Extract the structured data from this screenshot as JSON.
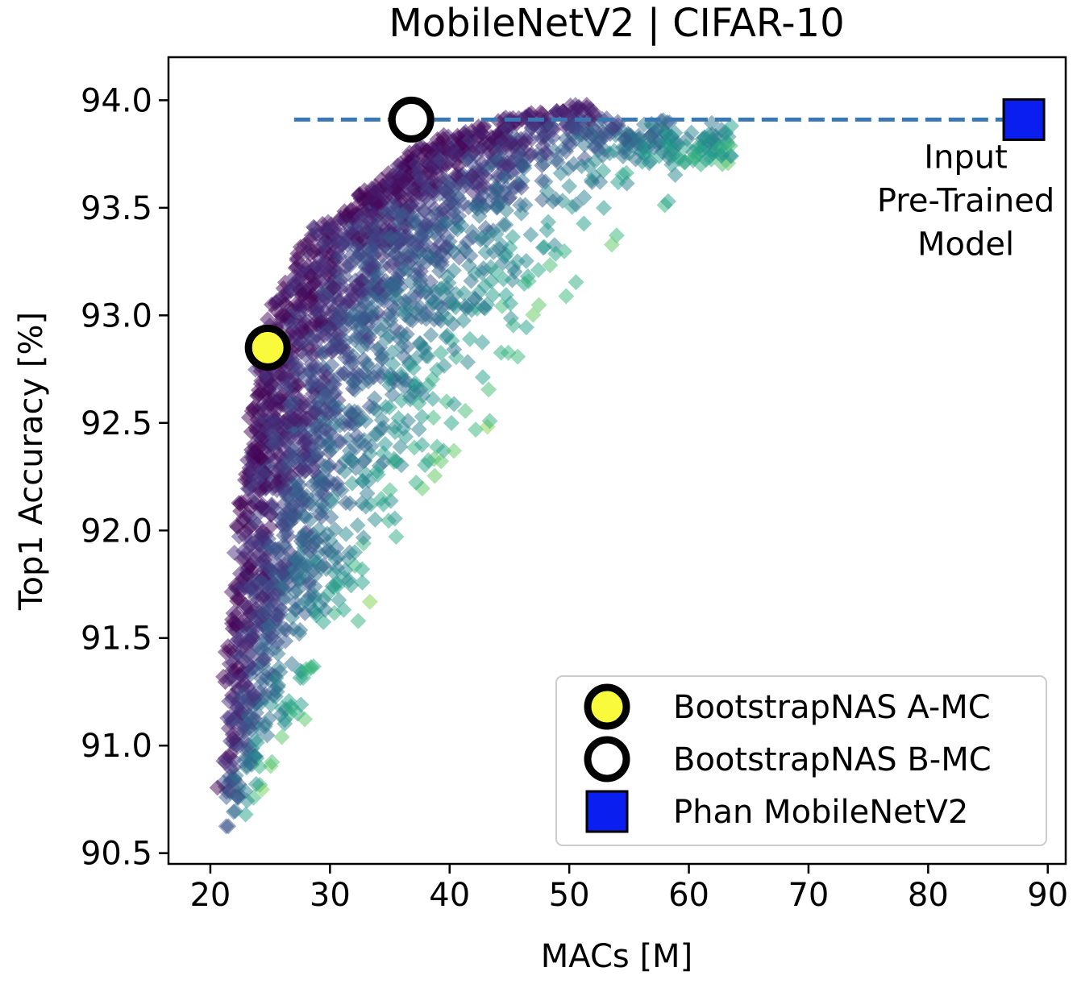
{
  "chart_data": {
    "type": "scatter",
    "title": "MobileNetV2 | CIFAR-10",
    "xlabel": "MACs [M]",
    "ylabel": "Top1 Accuracy [%]",
    "xlim": [
      16.5,
      91.5
    ],
    "ylim": [
      90.45,
      94.2
    ],
    "xticks": [
      20,
      30,
      40,
      50,
      60,
      70,
      80,
      90
    ],
    "yticks": [
      90.5,
      91.0,
      91.5,
      92.0,
      92.5,
      93.0,
      93.5,
      94.0
    ],
    "xtick_labels": [
      "20",
      "30",
      "40",
      "50",
      "60",
      "70",
      "80",
      "90"
    ],
    "ytick_labels": [
      "90.5",
      "91.0",
      "91.5",
      "92.0",
      "92.5",
      "93.0",
      "93.5",
      "94.0"
    ],
    "grid": false,
    "legend_position": "bottom-right",
    "cloud": {
      "description_marker": "diamond",
      "colormap": "viridis",
      "alpha": 0.5,
      "frontier": [
        [
          20,
          90.6
        ],
        [
          21,
          91.3
        ],
        [
          22,
          92.1
        ],
        [
          23,
          92.6
        ],
        [
          24,
          92.9
        ],
        [
          26,
          93.2
        ],
        [
          28,
          93.4
        ],
        [
          32,
          93.55
        ],
        [
          36,
          93.75
        ],
        [
          42,
          93.9
        ],
        [
          50,
          93.98
        ],
        [
          54,
          93.85
        ]
      ],
      "x_range": [
        19.8,
        63.6
      ],
      "y_range": [
        90.6,
        94.02
      ],
      "count": 2600
    },
    "series": [
      {
        "name": "BootstrapNAS A-MC",
        "marker": "circle",
        "facecolor": "#fafa3c",
        "edgecolor": "#000000",
        "points": [
          {
            "x": 24.8,
            "y": 92.85
          }
        ]
      },
      {
        "name": "BootstrapNAS B-MC",
        "marker": "circle",
        "facecolor": "#ffffff",
        "edgecolor": "#000000",
        "points": [
          {
            "x": 36.8,
            "y": 93.91
          }
        ]
      },
      {
        "name": "Phan MobileNetV2",
        "marker": "square",
        "facecolor": "#0a1ef0",
        "edgecolor": "#000000",
        "points": [
          {
            "x": 88.0,
            "y": 93.91
          }
        ]
      }
    ],
    "reference_line": {
      "y": 93.91,
      "x_start": 27,
      "x_end": 88,
      "style": "dashed",
      "color": "#3a78b5"
    },
    "annotations": [
      {
        "text_lines": [
          "Input",
          "Pre-Trained",
          "Model"
        ],
        "x": 88.0,
        "y": 93.91
      }
    ]
  }
}
